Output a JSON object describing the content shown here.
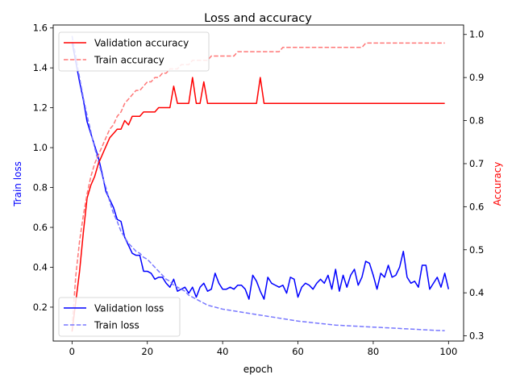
{
  "chart_data": {
    "type": "line",
    "title": "Loss and accuracy",
    "xlabel": "epoch",
    "ylabel_left": "Train loss",
    "ylabel_right": "Accuracy",
    "xlim": [
      -5,
      104
    ],
    "ylim_left": [
      0.03,
      1.615
    ],
    "ylim_right": [
      0.288,
      1.022
    ],
    "xticks": [
      0,
      20,
      40,
      60,
      80,
      100
    ],
    "yticks_left": [
      0.2,
      0.4,
      0.6,
      0.8,
      1.0,
      1.2,
      1.4,
      1.6
    ],
    "yticks_right": [
      0.3,
      0.4,
      0.5,
      0.6,
      0.7,
      0.8,
      0.9,
      1.0
    ],
    "grid": false,
    "legend_acc": {
      "placement": "top-left",
      "entries": [
        "Validation accuracy",
        "Train accuracy"
      ]
    },
    "legend_loss": {
      "placement": "bottom-left",
      "entries": [
        "Validation loss",
        "Train loss"
      ]
    },
    "colors": {
      "val_loss": "#0000ff",
      "train_loss": "#7777ff",
      "val_acc": "#ff0000",
      "train_acc": "#ff7777"
    },
    "series": [
      {
        "name": "Validation loss",
        "axis": "left",
        "style": "solid",
        "values": [
          1.53,
          1.43,
          1.33,
          1.24,
          1.13,
          1.07,
          1.01,
          0.95,
          0.87,
          0.78,
          0.74,
          0.7,
          0.64,
          0.63,
          0.55,
          0.51,
          0.47,
          0.46,
          0.46,
          0.38,
          0.38,
          0.37,
          0.34,
          0.35,
          0.35,
          0.32,
          0.3,
          0.34,
          0.28,
          0.29,
          0.3,
          0.27,
          0.3,
          0.25,
          0.3,
          0.32,
          0.28,
          0.29,
          0.37,
          0.32,
          0.29,
          0.29,
          0.3,
          0.29,
          0.31,
          0.31,
          0.29,
          0.24,
          0.36,
          0.33,
          0.28,
          0.24,
          0.35,
          0.32,
          0.31,
          0.3,
          0.31,
          0.27,
          0.35,
          0.34,
          0.25,
          0.3,
          0.32,
          0.31,
          0.29,
          0.32,
          0.34,
          0.32,
          0.36,
          0.29,
          0.39,
          0.28,
          0.36,
          0.3,
          0.36,
          0.39,
          0.31,
          0.35,
          0.43,
          0.42,
          0.36,
          0.29,
          0.37,
          0.35,
          0.41,
          0.35,
          0.36,
          0.4,
          0.48,
          0.35,
          0.32,
          0.33,
          0.3,
          0.41,
          0.41,
          0.29,
          0.32,
          0.35,
          0.3,
          0.37,
          0.29
        ]
      },
      {
        "name": "Train loss",
        "axis": "left",
        "style": "dashed",
        "values": [
          1.56,
          1.46,
          1.35,
          1.25,
          1.16,
          1.08,
          1.0,
          0.93,
          0.86,
          0.8,
          0.73,
          0.67,
          0.63,
          0.58,
          0.55,
          0.52,
          0.5,
          0.48,
          0.47,
          0.45,
          0.44,
          0.42,
          0.4,
          0.38,
          0.36,
          0.34,
          0.33,
          0.31,
          0.3,
          0.29,
          0.28,
          0.26,
          0.25,
          0.24,
          0.23,
          0.22,
          0.21,
          0.205,
          0.2,
          0.195,
          0.19,
          0.187,
          0.184,
          0.181,
          0.178,
          0.175,
          0.172,
          0.169,
          0.166,
          0.163,
          0.16,
          0.157,
          0.154,
          0.151,
          0.148,
          0.145,
          0.142,
          0.139,
          0.136,
          0.133,
          0.13,
          0.128,
          0.126,
          0.124,
          0.122,
          0.12,
          0.118,
          0.116,
          0.114,
          0.112,
          0.11,
          0.109,
          0.108,
          0.107,
          0.106,
          0.105,
          0.104,
          0.103,
          0.102,
          0.101,
          0.1,
          0.099,
          0.098,
          0.097,
          0.096,
          0.095,
          0.094,
          0.093,
          0.092,
          0.091,
          0.09,
          0.089,
          0.088,
          0.087,
          0.086,
          0.085,
          0.084,
          0.083,
          0.083,
          0.082
        ]
      },
      {
        "name": "Validation accuracy",
        "axis": "right",
        "style": "solid",
        "values": [
          0.31,
          0.38,
          0.45,
          0.54,
          0.62,
          0.65,
          0.67,
          0.7,
          0.72,
          0.74,
          0.76,
          0.77,
          0.78,
          0.78,
          0.8,
          0.79,
          0.81,
          0.81,
          0.81,
          0.82,
          0.82,
          0.82,
          0.82,
          0.83,
          0.83,
          0.83,
          0.83,
          0.88,
          0.84,
          0.84,
          0.84,
          0.84,
          0.9,
          0.84,
          0.84,
          0.89,
          0.84,
          0.84,
          0.84,
          0.84,
          0.84,
          0.84,
          0.84,
          0.84,
          0.84,
          0.84,
          0.84,
          0.84,
          0.84,
          0.84,
          0.9,
          0.84,
          0.84,
          0.84,
          0.84,
          0.84,
          0.84,
          0.84,
          0.84,
          0.84,
          0.84,
          0.84,
          0.84,
          0.84,
          0.84,
          0.84,
          0.84,
          0.84,
          0.84,
          0.84,
          0.84,
          0.84,
          0.84,
          0.84,
          0.84,
          0.84,
          0.84,
          0.84,
          0.84,
          0.84,
          0.84,
          0.84,
          0.84,
          0.84,
          0.84,
          0.84,
          0.84,
          0.84,
          0.84,
          0.84,
          0.84,
          0.84,
          0.84,
          0.84,
          0.84,
          0.84,
          0.84,
          0.84,
          0.84,
          0.84
        ]
      },
      {
        "name": "Train accuracy",
        "axis": "right",
        "style": "dashed",
        "values": [
          0.32,
          0.44,
          0.52,
          0.58,
          0.63,
          0.67,
          0.7,
          0.72,
          0.74,
          0.76,
          0.78,
          0.79,
          0.81,
          0.82,
          0.84,
          0.85,
          0.86,
          0.87,
          0.87,
          0.88,
          0.89,
          0.89,
          0.9,
          0.9,
          0.91,
          0.91,
          0.92,
          0.92,
          0.92,
          0.93,
          0.93,
          0.93,
          0.94,
          0.94,
          0.94,
          0.94,
          0.94,
          0.95,
          0.95,
          0.95,
          0.95,
          0.95,
          0.95,
          0.95,
          0.96,
          0.96,
          0.96,
          0.96,
          0.96,
          0.96,
          0.96,
          0.96,
          0.96,
          0.96,
          0.96,
          0.96,
          0.97,
          0.97,
          0.97,
          0.97,
          0.97,
          0.97,
          0.97,
          0.97,
          0.97,
          0.97,
          0.97,
          0.97,
          0.97,
          0.97,
          0.97,
          0.97,
          0.97,
          0.97,
          0.97,
          0.97,
          0.97,
          0.97,
          0.98,
          0.98,
          0.98,
          0.98,
          0.98,
          0.98,
          0.98,
          0.98,
          0.98,
          0.98,
          0.98,
          0.98,
          0.98,
          0.98,
          0.98,
          0.98,
          0.98,
          0.98,
          0.98,
          0.98,
          0.98,
          0.98
        ]
      }
    ]
  }
}
